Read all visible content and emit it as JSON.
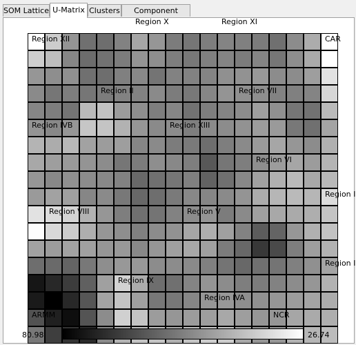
{
  "tabs": [
    {
      "label": "SOM Lattice",
      "active": false
    },
    {
      "label": "U-Matrix",
      "active": true
    },
    {
      "label": "Clusters",
      "active": false
    },
    {
      "label": "Component Planes",
      "active": false
    }
  ],
  "umatrix": {
    "grid": [
      [
        255,
        204,
        148,
        112,
        110,
        130,
        166,
        150,
        124,
        118,
        126,
        132,
        128,
        124,
        112,
        140,
        172,
        255
      ],
      [
        206,
        190,
        134,
        108,
        114,
        124,
        148,
        142,
        126,
        120,
        128,
        132,
        124,
        132,
        118,
        142,
        170,
        255
      ],
      [
        150,
        142,
        144,
        112,
        110,
        128,
        136,
        116,
        130,
        130,
        132,
        144,
        146,
        152,
        140,
        140,
        158,
        226
      ],
      [
        138,
        118,
        126,
        118,
        124,
        130,
        130,
        138,
        124,
        120,
        134,
        148,
        144,
        142,
        130,
        128,
        132,
        214
      ],
      [
        134,
        126,
        116,
        186,
        194,
        156,
        142,
        126,
        134,
        114,
        126,
        132,
        140,
        158,
        144,
        118,
        114,
        186
      ],
      [
        148,
        136,
        150,
        198,
        196,
        178,
        150,
        138,
        140,
        126,
        138,
        140,
        146,
        156,
        154,
        120,
        112,
        164
      ],
      [
        180,
        172,
        184,
        162,
        156,
        158,
        134,
        138,
        124,
        122,
        110,
        126,
        138,
        154,
        166,
        150,
        140,
        176
      ],
      [
        168,
        158,
        154,
        148,
        140,
        118,
        124,
        142,
        136,
        126,
        88,
        118,
        126,
        142,
        156,
        166,
        156,
        180
      ],
      [
        150,
        136,
        144,
        140,
        136,
        130,
        104,
        112,
        118,
        128,
        98,
        112,
        136,
        160,
        176,
        186,
        168,
        184
      ],
      [
        154,
        162,
        160,
        134,
        138,
        120,
        104,
        110,
        122,
        136,
        134,
        138,
        148,
        172,
        182,
        186,
        182,
        220
      ],
      [
        226,
        220,
        212,
        178,
        150,
        126,
        112,
        116,
        130,
        140,
        148,
        124,
        138,
        160,
        168,
        170,
        174,
        196
      ],
      [
        252,
        216,
        204,
        174,
        150,
        142,
        128,
        140,
        146,
        166,
        174,
        160,
        130,
        92,
        100,
        150,
        176,
        194
      ],
      [
        162,
        156,
        162,
        160,
        150,
        152,
        136,
        150,
        160,
        168,
        160,
        124,
        104,
        56,
        74,
        126,
        158,
        178
      ],
      [
        110,
        106,
        100,
        120,
        142,
        152,
        152,
        140,
        140,
        138,
        128,
        116,
        104,
        112,
        116,
        128,
        144,
        164
      ],
      [
        22,
        40,
        60,
        96,
        160,
        210,
        172,
        110,
        112,
        132,
        148,
        140,
        126,
        124,
        130,
        140,
        150,
        178
      ],
      [
        26,
        0,
        40,
        86,
        164,
        196,
        160,
        120,
        120,
        134,
        150,
        152,
        142,
        144,
        150,
        156,
        164,
        172
      ],
      [
        82,
        32,
        14,
        84,
        140,
        208,
        196,
        156,
        150,
        156,
        158,
        168,
        158,
        150,
        150,
        166,
        170,
        174
      ],
      [
        120,
        62,
        52,
        42,
        138,
        180,
        196,
        196,
        176,
        196,
        206,
        204,
        168,
        150,
        150,
        178,
        182,
        188
      ]
    ],
    "regions": [
      "Region X",
      "Region XI",
      "Region XII",
      "CAR",
      "Region II",
      "Region VII",
      "Region IVB",
      "Region XIII",
      "Region VI",
      "Region I",
      "Region VIII",
      "Region V",
      "Region III",
      "Region IX",
      "Region IVA",
      "ARMM",
      "NCR"
    ],
    "scale": {
      "min_label": "80.98",
      "max_label": "26.74"
    }
  }
}
